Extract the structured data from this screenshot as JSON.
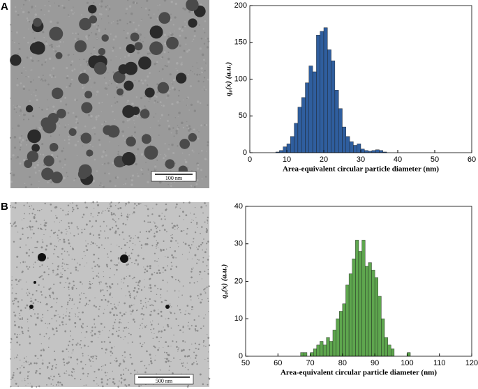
{
  "panels": [
    {
      "label": "A",
      "scale_bar": "100 nm"
    },
    {
      "label": "B",
      "scale_bar": "500 nm"
    }
  ],
  "chart_data": [
    {
      "type": "histogram",
      "color": "#2f5e9e",
      "bins": [
        7,
        8,
        9,
        10,
        11,
        12,
        13,
        14,
        15,
        16,
        17,
        18,
        19,
        20,
        21,
        22,
        23,
        24,
        25,
        26,
        27,
        28,
        29,
        30,
        31,
        32,
        33,
        34,
        35,
        36,
        37
      ],
      "values": [
        1,
        3,
        8,
        12,
        22,
        40,
        62,
        75,
        95,
        118,
        110,
        160,
        165,
        170,
        140,
        125,
        85,
        60,
        35,
        22,
        15,
        10,
        12,
        5,
        3,
        2,
        3,
        4,
        3,
        1
      ],
      "xlim": [
        0,
        60
      ],
      "xticks": [
        0,
        10,
        20,
        30,
        40,
        50,
        60
      ],
      "ylim": [
        0,
        200
      ],
      "yticks": [
        0,
        50,
        100,
        150,
        200
      ],
      "x_label": "Area-equivalent circular particle diameter (nm)",
      "y_label": "q₀(x) (a.u.)"
    },
    {
      "type": "histogram",
      "color": "#5ea64e",
      "bins": [
        67,
        68,
        69,
        70,
        71,
        72,
        73,
        74,
        75,
        76,
        77,
        78,
        79,
        80,
        81,
        82,
        83,
        84,
        85,
        86,
        87,
        88,
        89,
        90,
        91,
        92,
        93,
        94,
        95,
        96,
        97,
        98,
        99,
        100,
        101
      ],
      "values": [
        1,
        1,
        0,
        1,
        2,
        3,
        4,
        3,
        5,
        4,
        7,
        10,
        12,
        14,
        19,
        22,
        26,
        31,
        28,
        31,
        24,
        25,
        23,
        21,
        16,
        10,
        5,
        3,
        2,
        0,
        0,
        0,
        0,
        1
      ],
      "xlim": [
        50,
        120
      ],
      "xticks": [
        50,
        60,
        70,
        80,
        90,
        100,
        110,
        120
      ],
      "ylim": [
        0,
        40
      ],
      "yticks": [
        0,
        10,
        20,
        30,
        40
      ],
      "x_label": "Area-equivalent circular particle diameter (nm)",
      "y_label": "q₀(x) (a.u.)"
    }
  ]
}
